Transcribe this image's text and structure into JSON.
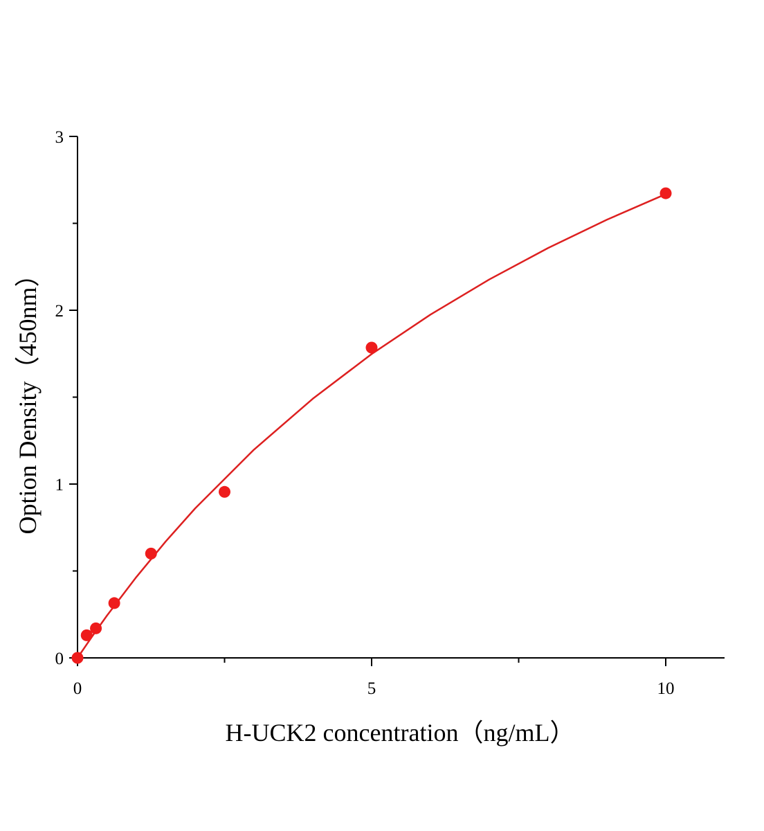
{
  "chart_data": {
    "type": "scatter",
    "x_label": "H-UCK2 concentration（ng/mL）",
    "y_label": "Option Density（450nm）",
    "x": [
      0,
      0.156,
      0.3125,
      0.625,
      1.25,
      2.5,
      5,
      10
    ],
    "values": [
      0,
      0.13,
      0.17,
      0.315,
      0.6,
      0.955,
      1.785,
      2.673
    ],
    "color": "#ee1c1c",
    "fit": {
      "x": [
        0,
        0.25,
        0.5,
        1,
        1.5,
        2,
        3,
        4,
        5,
        6,
        7,
        8,
        9,
        10
      ],
      "values": [
        0,
        0.124,
        0.243,
        0.465,
        0.67,
        0.86,
        1.198,
        1.491,
        1.748,
        1.975,
        2.177,
        2.358,
        2.521,
        2.668
      ],
      "color": "#dd2020"
    },
    "xlim": [
      0,
      11
    ],
    "ylim": [
      0,
      3
    ],
    "xticks": [
      0,
      5,
      10
    ],
    "yticks": [
      0,
      1,
      2,
      3
    ],
    "xminorticks": [
      2.5,
      7.5
    ],
    "yminorticks": [
      0.5,
      1.5,
      2.5
    ]
  }
}
